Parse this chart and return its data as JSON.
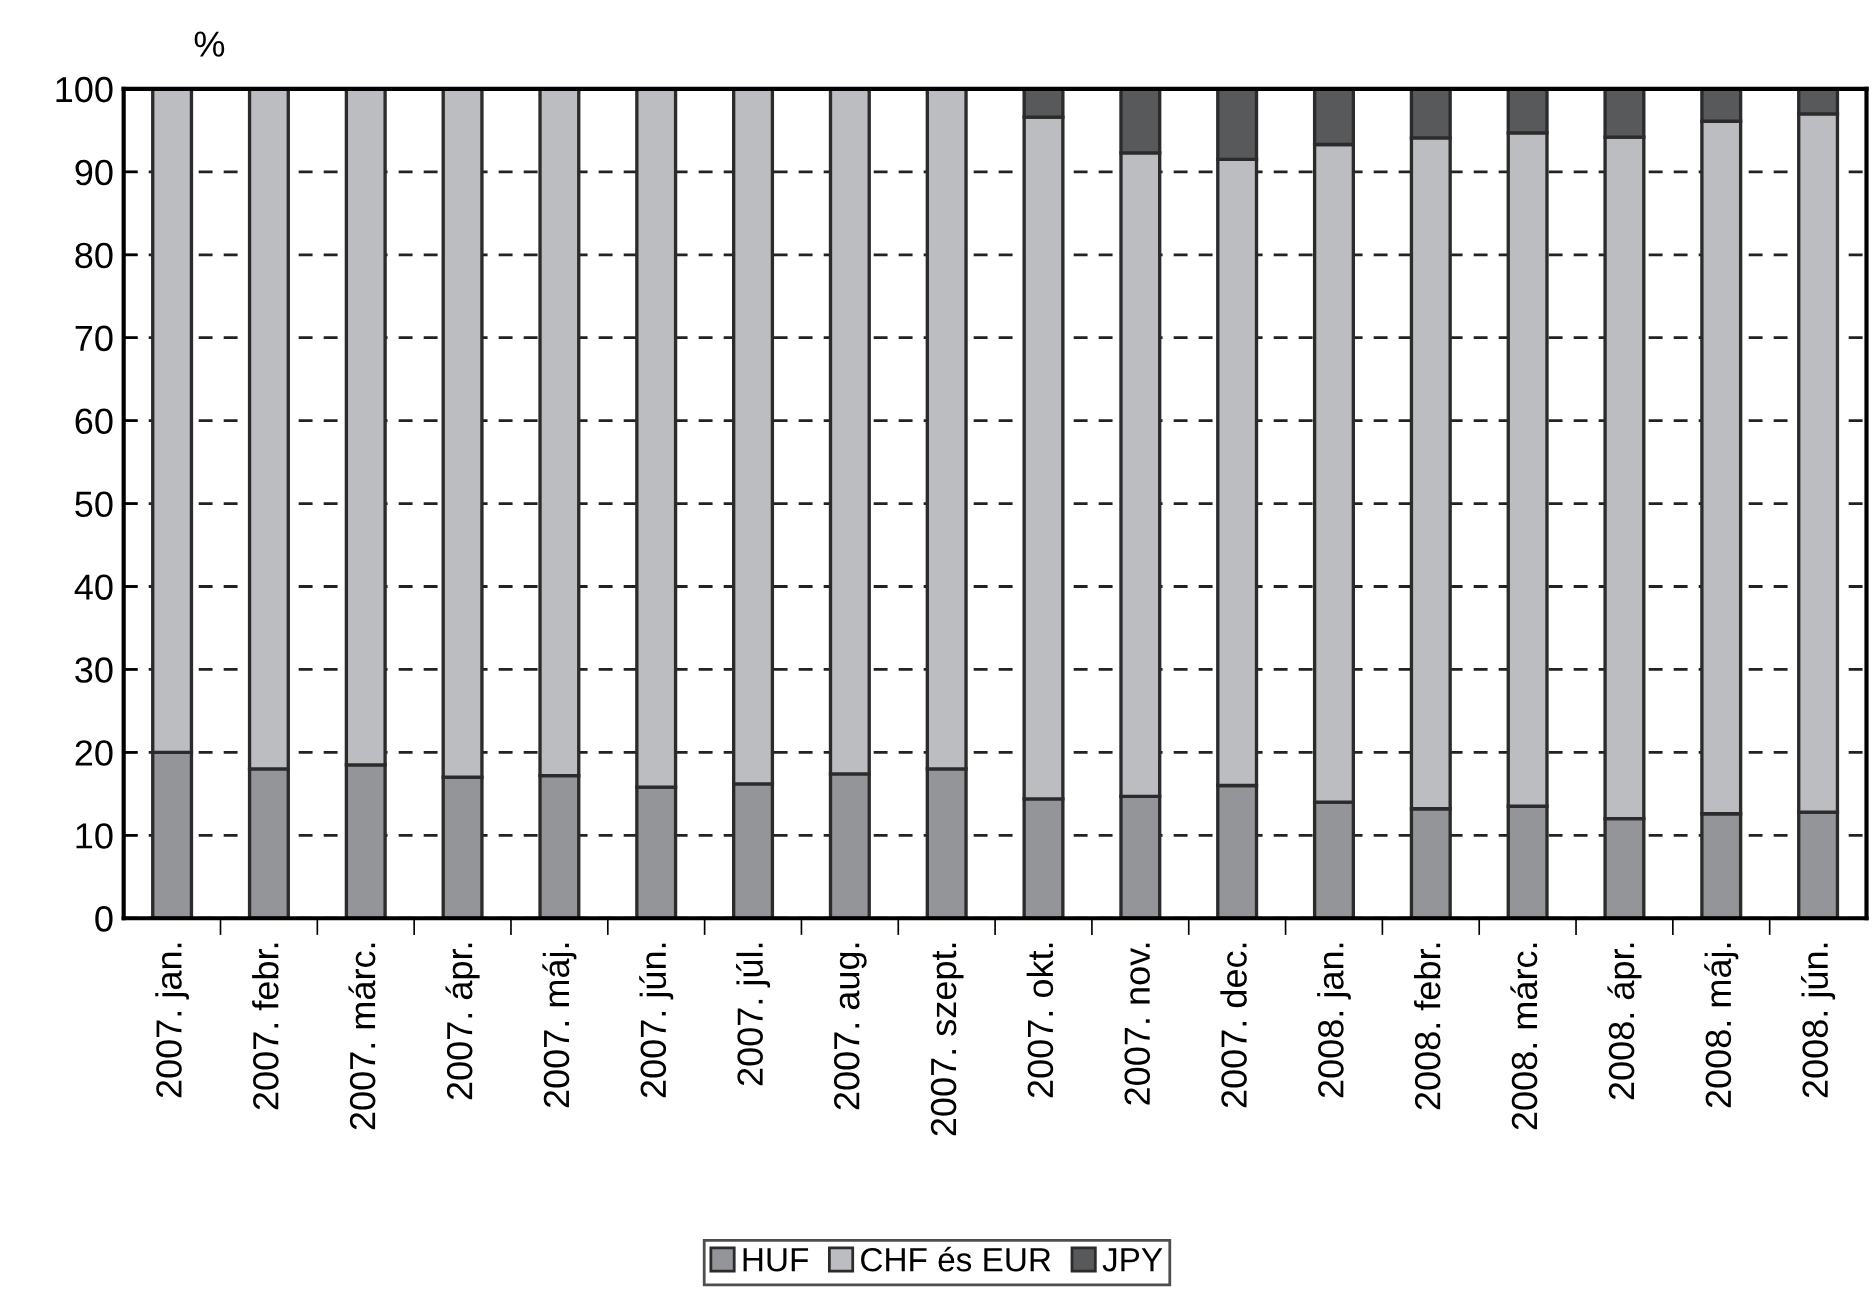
{
  "chart_data": {
    "type": "bar",
    "stacked": true,
    "ylabel": "%",
    "categories": [
      "2007. jan.",
      "2007. febr.",
      "2007. márc.",
      "2007. ápr.",
      "2007. máj.",
      "2007. jún.",
      "2007. júl.",
      "2007. aug.",
      "2007. szept.",
      "2007. okt.",
      "2007. nov.",
      "2007. dec.",
      "2008. jan.",
      "2008. febr.",
      "2008. márc.",
      "2008. ápr.",
      "2008. máj.",
      "2008. jún."
    ],
    "series": [
      {
        "name": "HUF",
        "color": "#939598",
        "values": [
          20,
          18,
          18.5,
          17,
          17.2,
          15.8,
          16.2,
          17.4,
          18,
          14.4,
          14.7,
          16,
          14,
          13.2,
          13.5,
          12,
          12.6,
          12.8
        ]
      },
      {
        "name": "CHF és EUR",
        "color": "#bcbdc0",
        "values": [
          80,
          82,
          81.5,
          83,
          82.8,
          84.2,
          83.8,
          82.6,
          82,
          82.2,
          77.6,
          75.5,
          79.3,
          80.9,
          81.2,
          82.2,
          83.5,
          84.2
        ]
      },
      {
        "name": "JPY",
        "color": "#58595b",
        "values": [
          null,
          null,
          null,
          null,
          null,
          null,
          null,
          null,
          null,
          3.4,
          7.7,
          8.5,
          6.7,
          5.9,
          5.3,
          5.8,
          3.9,
          3
        ]
      }
    ],
    "ylim": [
      0,
      100
    ],
    "yticks": [
      0,
      10,
      20,
      30,
      40,
      50,
      60,
      70,
      80,
      90,
      100
    ],
    "grid": "y",
    "legend": "bottom"
  }
}
